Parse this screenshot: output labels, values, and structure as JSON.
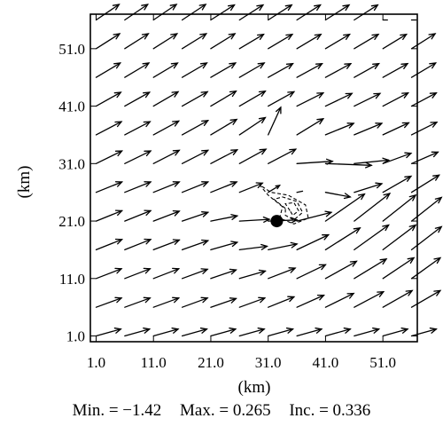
{
  "chart_data": {
    "type": "vector-field",
    "xlabel": "(km)",
    "ylabel": "(km)",
    "xlim": [
      0,
      57
    ],
    "ylim": [
      0,
      57
    ],
    "x_ticks": [
      "1.0",
      "11.0",
      "21.0",
      "31.0",
      "41.0",
      "51.0"
    ],
    "y_ticks": [
      "1.0",
      "11.0",
      "21.0",
      "31.0",
      "41.0",
      "51.0"
    ],
    "grid": false,
    "vectors": {
      "x": [
        1,
        6,
        11,
        16,
        21,
        26,
        31,
        36,
        41,
        46,
        51,
        56
      ],
      "y": [
        1,
        6,
        11,
        16,
        21,
        26,
        31,
        36,
        41,
        46,
        51,
        56
      ],
      "rows": [
        [
          [
            4.3,
            1.2
          ],
          [
            4.3,
            1.2
          ],
          [
            4.3,
            1.2
          ],
          [
            4.3,
            1.2
          ],
          [
            4.3,
            1.2
          ],
          [
            4.3,
            1.2
          ],
          [
            4.3,
            1.2
          ],
          [
            4.3,
            1.2
          ],
          [
            4.3,
            1.2
          ],
          [
            4.3,
            1.2
          ],
          [
            4.3,
            1.2
          ],
          [
            4.3,
            1.2
          ]
        ],
        [
          [
            4.4,
            1.6
          ],
          [
            4.4,
            1.6
          ],
          [
            4.4,
            1.6
          ],
          [
            4.4,
            1.6
          ],
          [
            4.4,
            1.5
          ],
          [
            4.4,
            1.6
          ],
          [
            4.5,
            1.8
          ],
          [
            4.7,
            2.1
          ],
          [
            4.9,
            2.4
          ],
          [
            5.1,
            2.7
          ],
          [
            5.1,
            2.9
          ],
          [
            5.0,
            2.9
          ]
        ],
        [
          [
            4.4,
            1.7
          ],
          [
            4.4,
            1.7
          ],
          [
            4.4,
            1.7
          ],
          [
            4.4,
            1.6
          ],
          [
            4.4,
            1.5
          ],
          [
            4.5,
            1.3
          ],
          [
            4.7,
            1.8
          ],
          [
            5.0,
            2.4
          ],
          [
            5.4,
            3.0
          ],
          [
            5.6,
            3.4
          ],
          [
            5.4,
            3.6
          ],
          [
            5.0,
            3.6
          ]
        ],
        [
          [
            4.5,
            1.8
          ],
          [
            4.5,
            1.8
          ],
          [
            4.5,
            1.7
          ],
          [
            4.5,
            1.6
          ],
          [
            4.6,
            1.3
          ],
          [
            4.8,
            0.6
          ],
          [
            5.0,
            1.0
          ],
          [
            5.5,
            2.6
          ],
          [
            6.0,
            3.8
          ],
          [
            6.0,
            4.3
          ],
          [
            5.7,
            4.3
          ],
          [
            5.2,
            4.0
          ]
        ],
        [
          [
            4.5,
            1.8
          ],
          [
            4.5,
            1.8
          ],
          [
            4.5,
            1.7
          ],
          [
            4.5,
            1.5
          ],
          [
            4.6,
            0.9
          ],
          [
            5.2,
            0.3
          ],
          [
            5.0,
            0.2
          ],
          [
            6.0,
            1.5
          ],
          [
            6.8,
            4.7
          ],
          [
            6.2,
            4.8
          ],
          [
            5.7,
            4.5
          ],
          [
            5.2,
            4.1
          ]
        ],
        [
          [
            4.5,
            1.8
          ],
          [
            4.5,
            1.8
          ],
          [
            4.5,
            1.8
          ],
          [
            4.5,
            1.8
          ],
          [
            4.5,
            1.8
          ],
          [
            4.0,
            1.6
          ],
          [
            2.0,
            1.2
          ],
          [
            1.0,
            0.2
          ],
          [
            4.3,
            -0.8
          ],
          [
            4.8,
            1.5
          ],
          [
            4.9,
            2.8
          ],
          [
            4.8,
            3.0
          ]
        ],
        [
          [
            4.5,
            2.2
          ],
          [
            4.5,
            2.2
          ],
          [
            4.5,
            2.3
          ],
          [
            4.5,
            2.3
          ],
          [
            4.6,
            2.4
          ],
          [
            4.6,
            2.5
          ],
          [
            4.8,
            2.5
          ],
          [
            6.2,
            0.4
          ],
          [
            8.0,
            -0.3
          ],
          [
            6.0,
            0.6
          ],
          [
            4.9,
            1.8
          ],
          [
            4.6,
            2.0
          ]
        ],
        [
          [
            4.4,
            2.3
          ],
          [
            4.4,
            2.3
          ],
          [
            4.4,
            2.4
          ],
          [
            4.5,
            2.5
          ],
          [
            4.5,
            2.7
          ],
          [
            4.5,
            3.0
          ],
          [
            2.2,
            4.8
          ],
          [
            4.6,
            2.8
          ],
          [
            4.9,
            2.0
          ],
          [
            4.8,
            2.0
          ],
          [
            4.5,
            2.1
          ],
          [
            4.4,
            2.2
          ]
        ],
        [
          [
            4.3,
            2.4
          ],
          [
            4.3,
            2.4
          ],
          [
            4.3,
            2.5
          ],
          [
            4.4,
            2.5
          ],
          [
            4.4,
            2.6
          ],
          [
            4.5,
            2.6
          ],
          [
            4.5,
            2.5
          ],
          [
            4.6,
            2.3
          ],
          [
            4.6,
            2.2
          ],
          [
            4.5,
            2.2
          ],
          [
            4.4,
            2.3
          ],
          [
            4.3,
            2.3
          ]
        ],
        [
          [
            4.2,
            2.5
          ],
          [
            4.2,
            2.5
          ],
          [
            4.2,
            2.5
          ],
          [
            4.3,
            2.5
          ],
          [
            4.3,
            2.5
          ],
          [
            4.3,
            2.5
          ],
          [
            4.3,
            2.4
          ],
          [
            4.4,
            2.4
          ],
          [
            4.4,
            2.4
          ],
          [
            4.3,
            2.4
          ],
          [
            4.3,
            2.4
          ],
          [
            4.2,
            2.5
          ]
        ],
        [
          [
            4.1,
            2.6
          ],
          [
            4.1,
            2.6
          ],
          [
            4.1,
            2.6
          ],
          [
            4.2,
            2.6
          ],
          [
            4.2,
            2.6
          ],
          [
            4.2,
            2.5
          ],
          [
            4.2,
            2.5
          ],
          [
            4.2,
            2.5
          ],
          [
            4.2,
            2.5
          ],
          [
            4.2,
            2.5
          ],
          [
            4.1,
            2.5
          ],
          [
            4.1,
            2.6
          ]
        ],
        [
          [
            4.0,
            2.7
          ],
          [
            4.0,
            2.7
          ],
          [
            4.0,
            2.7
          ],
          [
            4.1,
            2.7
          ],
          [
            4.1,
            2.6
          ],
          [
            4.1,
            2.6
          ],
          [
            4.1,
            2.6
          ],
          [
            4.1,
            2.6
          ],
          [
            4.1,
            2.6
          ],
          [
            4.1,
            2.6
          ],
          [
            0.8,
            0.0
          ],
          [
            0.8,
            0.0
          ]
        ]
      ]
    },
    "contours": [
      [
        [
          33.5,
          23.5
        ],
        [
          31.0,
          25.5
        ],
        [
          29.5,
          27.3
        ],
        [
          31.5,
          26.0
        ],
        [
          34.5,
          25.5
        ],
        [
          37.5,
          23.8
        ],
        [
          38.0,
          21.5
        ],
        [
          35.5,
          20.5
        ],
        [
          33.0,
          21.5
        ],
        [
          33.5,
          23.5
        ]
      ],
      [
        [
          34.0,
          23.2
        ],
        [
          32.0,
          24.8
        ],
        [
          33.5,
          25.2
        ],
        [
          36.0,
          24.4
        ],
        [
          37.0,
          22.5
        ],
        [
          35.5,
          21.2
        ],
        [
          34.0,
          22.0
        ],
        [
          34.0,
          23.2
        ]
      ],
      [
        [
          34.8,
          22.8
        ],
        [
          34.0,
          24.0
        ],
        [
          35.5,
          24.2
        ],
        [
          36.3,
          22.8
        ],
        [
          35.3,
          22.0
        ],
        [
          34.8,
          22.8
        ]
      ]
    ],
    "marker": {
      "x": 32.5,
      "y": 21.0
    }
  },
  "stats": {
    "min_label": "Min. = −1.42",
    "max_label": "Max. = 0.265",
    "inc_label": "Inc. = 0.336"
  },
  "colors": {
    "ink": "#000000",
    "background": "#ffffff"
  }
}
